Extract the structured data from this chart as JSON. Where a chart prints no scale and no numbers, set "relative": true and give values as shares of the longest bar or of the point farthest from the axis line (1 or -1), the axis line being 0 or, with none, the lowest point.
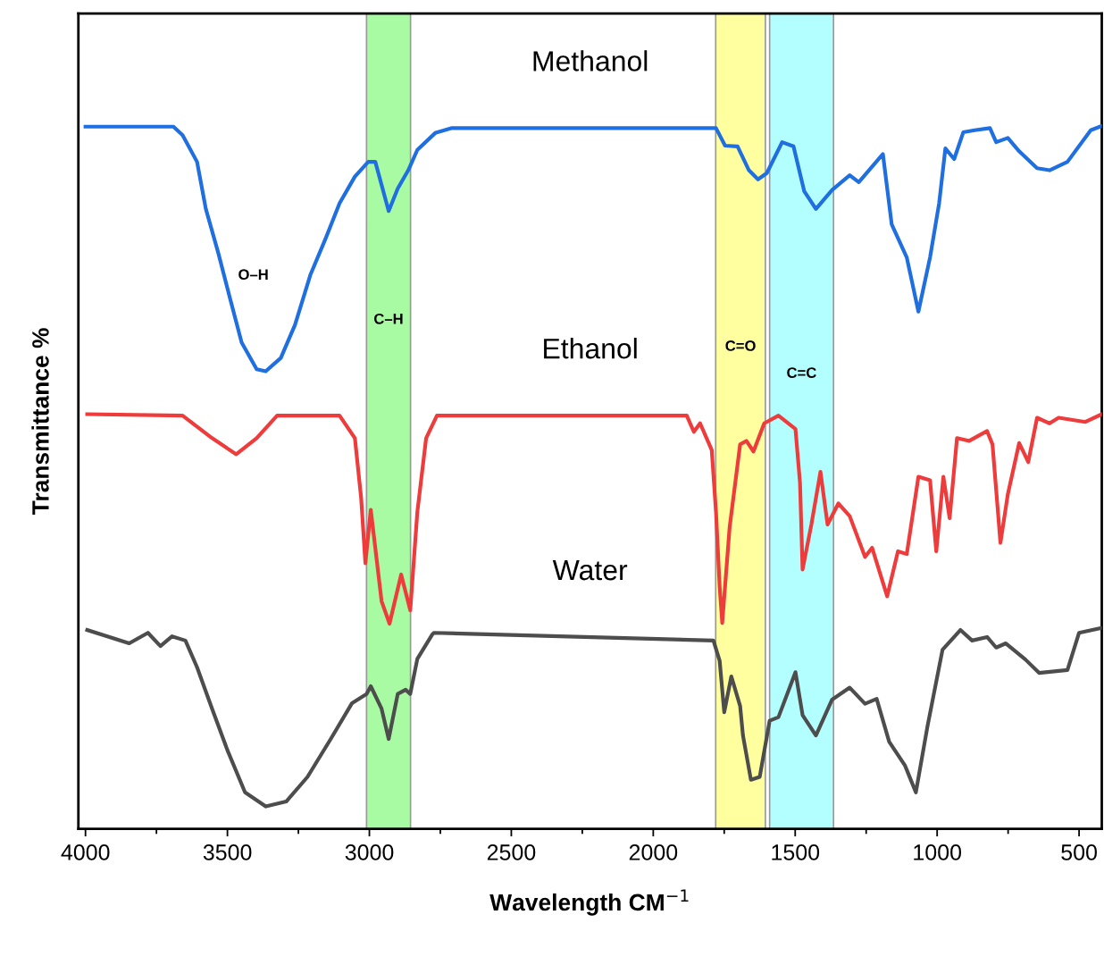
{
  "chart_data": {
    "type": "line",
    "relative": true,
    "xlabel": "Wavelength CM$^{−1}$",
    "ylabel": "Transmittance %",
    "xlim": [
      4025,
      420
    ],
    "xticks": [
      4000,
      {
        "value": 3750,
        "label": null
      },
      3500,
      {
        "value": 3250,
        "label": null
      },
      3000,
      {
        "value": 2750,
        "label": null
      },
      2500,
      {
        "value": 2250,
        "label": null
      },
      2000,
      {
        "value": 1750,
        "label": null
      },
      1500,
      {
        "value": 1250,
        "label": null
      },
      1000,
      {
        "value": 750,
        "label": null
      },
      500
    ],
    "tick_labels": "x",
    "grid": false,
    "legend": false,
    "marker": "none",
    "line_style": "solid",
    "series": [
      {
        "name": "Methanol",
        "color": "#1f6fe0",
        "x": [
          4000,
          3690,
          3658,
          3607,
          3576,
          3532,
          3491,
          3450,
          3397,
          3365,
          3312,
          3262,
          3208,
          3155,
          3105,
          3051,
          3004,
          2979,
          2932,
          2900,
          2863,
          2831,
          2768,
          2709,
          1779,
          1747,
          1703,
          1663,
          1631,
          1600,
          1546,
          1506,
          1468,
          1427,
          1370,
          1308,
          1276,
          1191,
          1160,
          1107,
          1066,
          1025,
          993,
          971,
          940,
          908,
          868,
          814,
          792,
          751,
          711,
          648,
          604,
          541,
          459,
          420
        ],
        "values": [
          0.999,
          0.999,
          0.987,
          0.949,
          0.882,
          0.819,
          0.755,
          0.692,
          0.654,
          0.651,
          0.67,
          0.717,
          0.788,
          0.839,
          0.89,
          0.928,
          0.949,
          0.949,
          0.879,
          0.911,
          0.937,
          0.966,
          0.99,
          0.997,
          0.997,
          0.972,
          0.971,
          0.937,
          0.924,
          0.933,
          0.977,
          0.971,
          0.907,
          0.882,
          0.909,
          0.93,
          0.92,
          0.96,
          0.86,
          0.813,
          0.736,
          0.813,
          0.89,
          0.968,
          0.953,
          0.991,
          0.994,
          0.997,
          0.977,
          0.983,
          0.964,
          0.94,
          0.937,
          0.949,
          0.994,
          1.0
        ]
      },
      {
        "name": "Ethanol",
        "color": "#ee3b3b",
        "x": [
          3994,
          3658,
          3554,
          3469,
          3397,
          3325,
          3105,
          3051,
          3029,
          3014,
          2995,
          2957,
          2929,
          2888,
          2856,
          2831,
          2800,
          2762,
          1882,
          1857,
          1835,
          1794,
          1779,
          1766,
          1757,
          1731,
          1694,
          1672,
          1647,
          1609,
          1559,
          1499,
          1483,
          1474,
          1443,
          1411,
          1386,
          1348,
          1308,
          1254,
          1229,
          1176,
          1138,
          1107,
          1066,
          1025,
          1003,
          978,
          956,
          930,
          887,
          824,
          805,
          777,
          751,
          711,
          679,
          648,
          604,
          572,
          478,
          420
        ],
        "values": [
          0.59,
          0.588,
          0.556,
          0.533,
          0.556,
          0.588,
          0.588,
          0.556,
          0.471,
          0.378,
          0.454,
          0.324,
          0.292,
          0.362,
          0.311,
          0.451,
          0.556,
          0.588,
          0.588,
          0.565,
          0.577,
          0.539,
          0.451,
          0.344,
          0.293,
          0.429,
          0.547,
          0.552,
          0.537,
          0.577,
          0.588,
          0.569,
          0.492,
          0.369,
          0.433,
          0.508,
          0.433,
          0.463,
          0.445,
          0.387,
          0.4,
          0.331,
          0.395,
          0.391,
          0.501,
          0.496,
          0.395,
          0.501,
          0.442,
          0.556,
          0.552,
          0.566,
          0.547,
          0.407,
          0.476,
          0.549,
          0.522,
          0.585,
          0.577,
          0.585,
          0.579,
          0.59
        ]
      },
      {
        "name": "Water",
        "color": "#4d4d4d",
        "x": [
          3994,
          3846,
          3780,
          3736,
          3695,
          3648,
          3607,
          3554,
          3500,
          3438,
          3365,
          3293,
          3218,
          3136,
          3061,
          3010,
          2995,
          2957,
          2932,
          2900,
          2872,
          2856,
          2831,
          2778,
          2772,
          1788,
          1766,
          1750,
          1725,
          1694,
          1684,
          1656,
          1625,
          1590,
          1559,
          1499,
          1474,
          1427,
          1370,
          1308,
          1254,
          1213,
          1169,
          1113,
          1075,
          1034,
          981,
          918,
          877,
          824,
          792,
          758,
          689,
          641,
          541,
          500,
          420
        ],
        "values": [
          0.283,
          0.264,
          0.279,
          0.26,
          0.274,
          0.268,
          0.23,
          0.171,
          0.112,
          0.052,
          0.032,
          0.039,
          0.074,
          0.128,
          0.179,
          0.192,
          0.203,
          0.171,
          0.128,
          0.192,
          0.198,
          0.192,
          0.242,
          0.277,
          0.279,
          0.268,
          0.239,
          0.166,
          0.217,
          0.175,
          0.133,
          0.07,
          0.074,
          0.154,
          0.159,
          0.223,
          0.162,
          0.133,
          0.184,
          0.201,
          0.178,
          0.185,
          0.124,
          0.09,
          0.052,
          0.146,
          0.255,
          0.283,
          0.268,
          0.273,
          0.258,
          0.264,
          0.241,
          0.222,
          0.226,
          0.279,
          0.286
        ]
      }
    ],
    "bands": [
      {
        "axis": "x",
        "from": 3010,
        "to": 2855,
        "color": "#a9fba3",
        "label": "C–H"
      },
      {
        "axis": "x",
        "from": 1780,
        "to": 1605,
        "color": "#ffffa0",
        "label": "C=O"
      },
      {
        "axis": "x",
        "from": 1590,
        "to": 1365,
        "color": "#b3ffff",
        "label": "C=C"
      }
    ],
    "annotations": [
      "O–H"
    ]
  }
}
